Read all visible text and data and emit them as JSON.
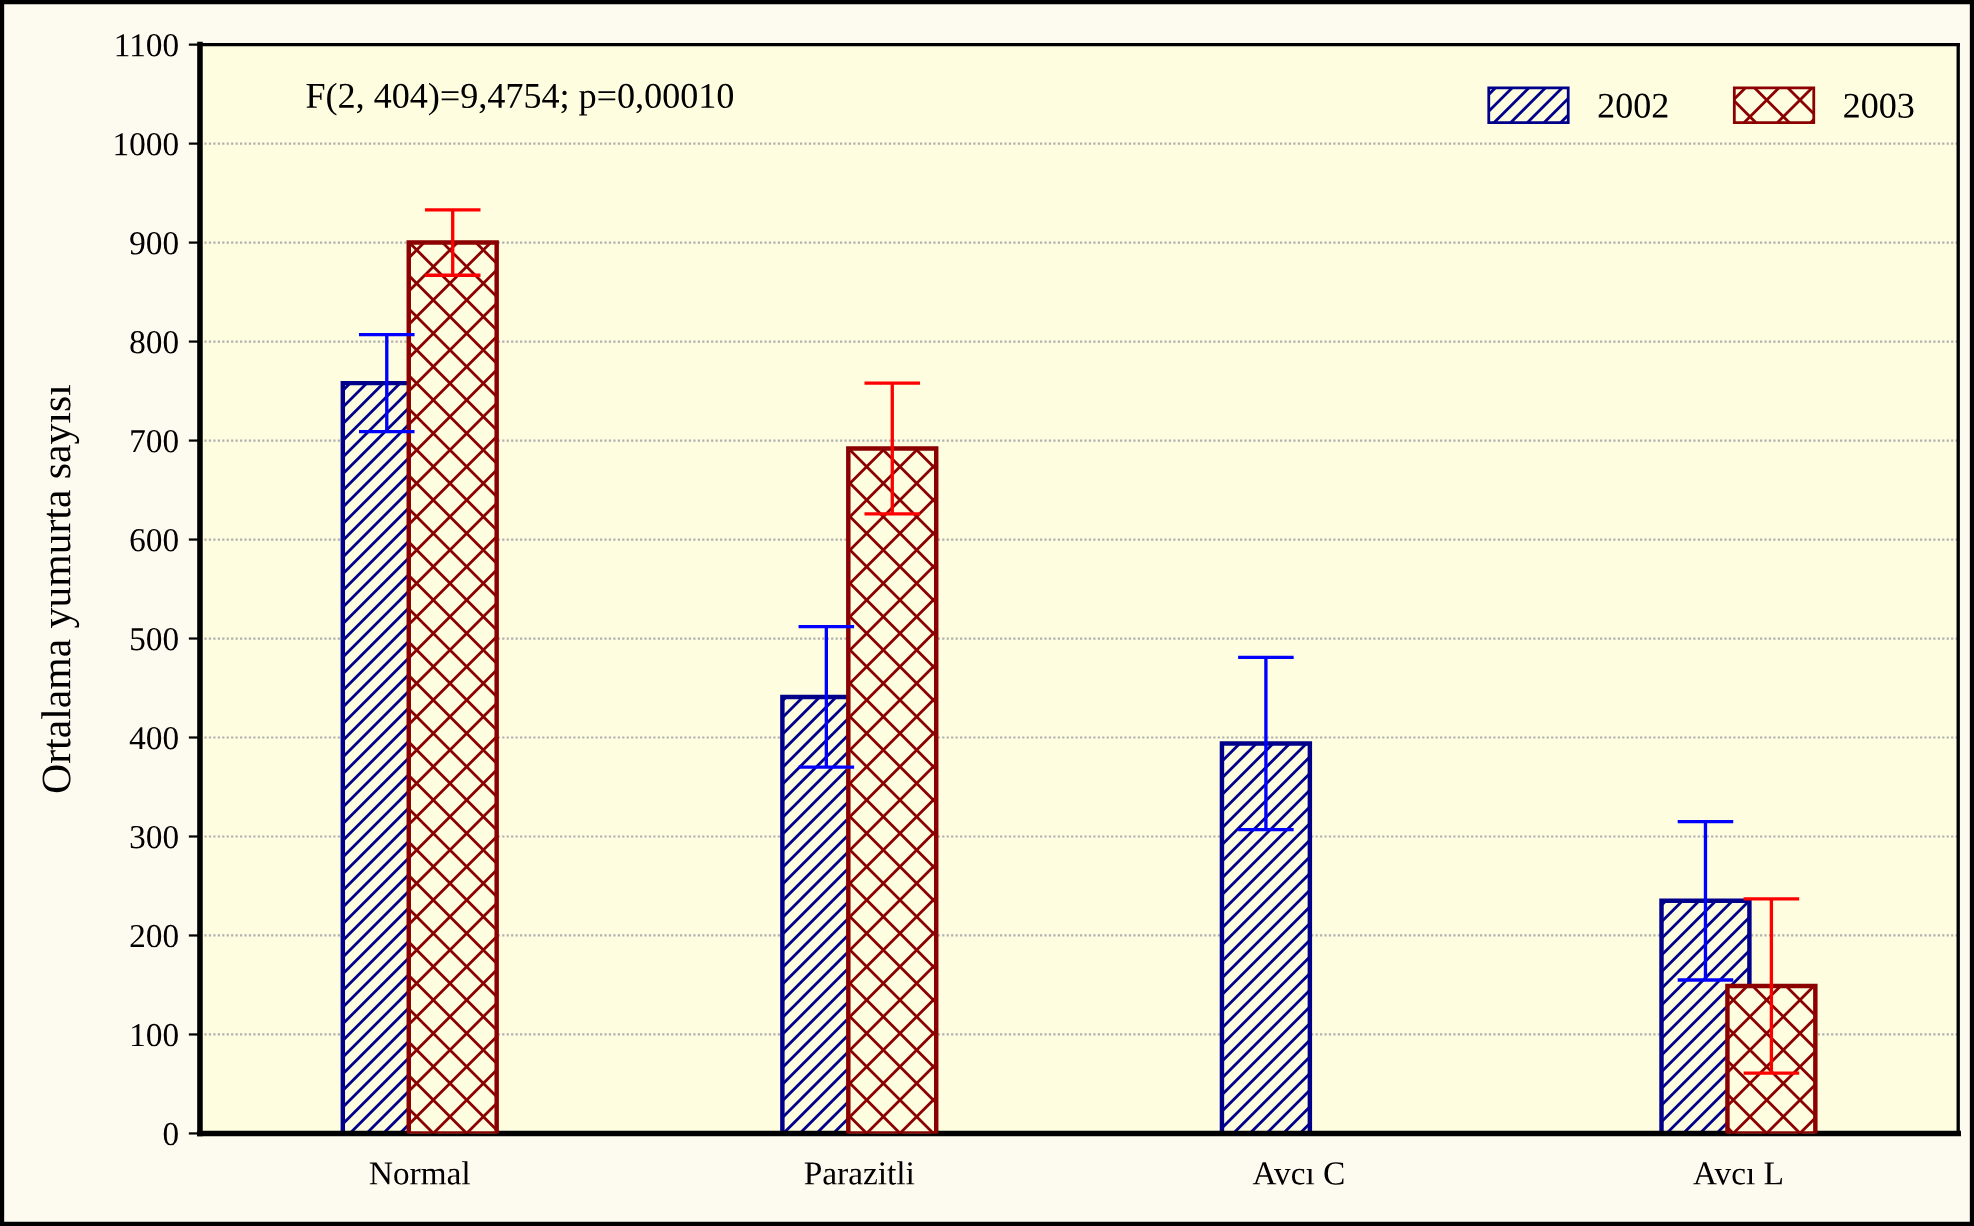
{
  "chart_data": {
    "type": "bar",
    "ylabel": "Ortalama yumurta sayısı",
    "categories": [
      "Normal",
      "Parazitli",
      "Avcı C",
      "Avcı L"
    ],
    "series": [
      {
        "name": "2002",
        "color": "#00008b",
        "values": [
          758,
          441,
          394,
          235
        ],
        "errors": [
          49,
          71,
          87,
          80
        ]
      },
      {
        "name": "2003",
        "color": "#8b0000",
        "values": [
          900,
          692,
          null,
          149
        ],
        "errors": [
          33,
          66,
          null,
          88
        ]
      }
    ],
    "ylim": [
      0,
      1100
    ],
    "yticks": [
      0,
      100,
      200,
      300,
      400,
      500,
      600,
      700,
      800,
      900,
      1000,
      1100
    ],
    "grid": "y",
    "legend": "top right",
    "annotations": [
      "F(2, 404)=9,4754; p=0,00010"
    ]
  }
}
